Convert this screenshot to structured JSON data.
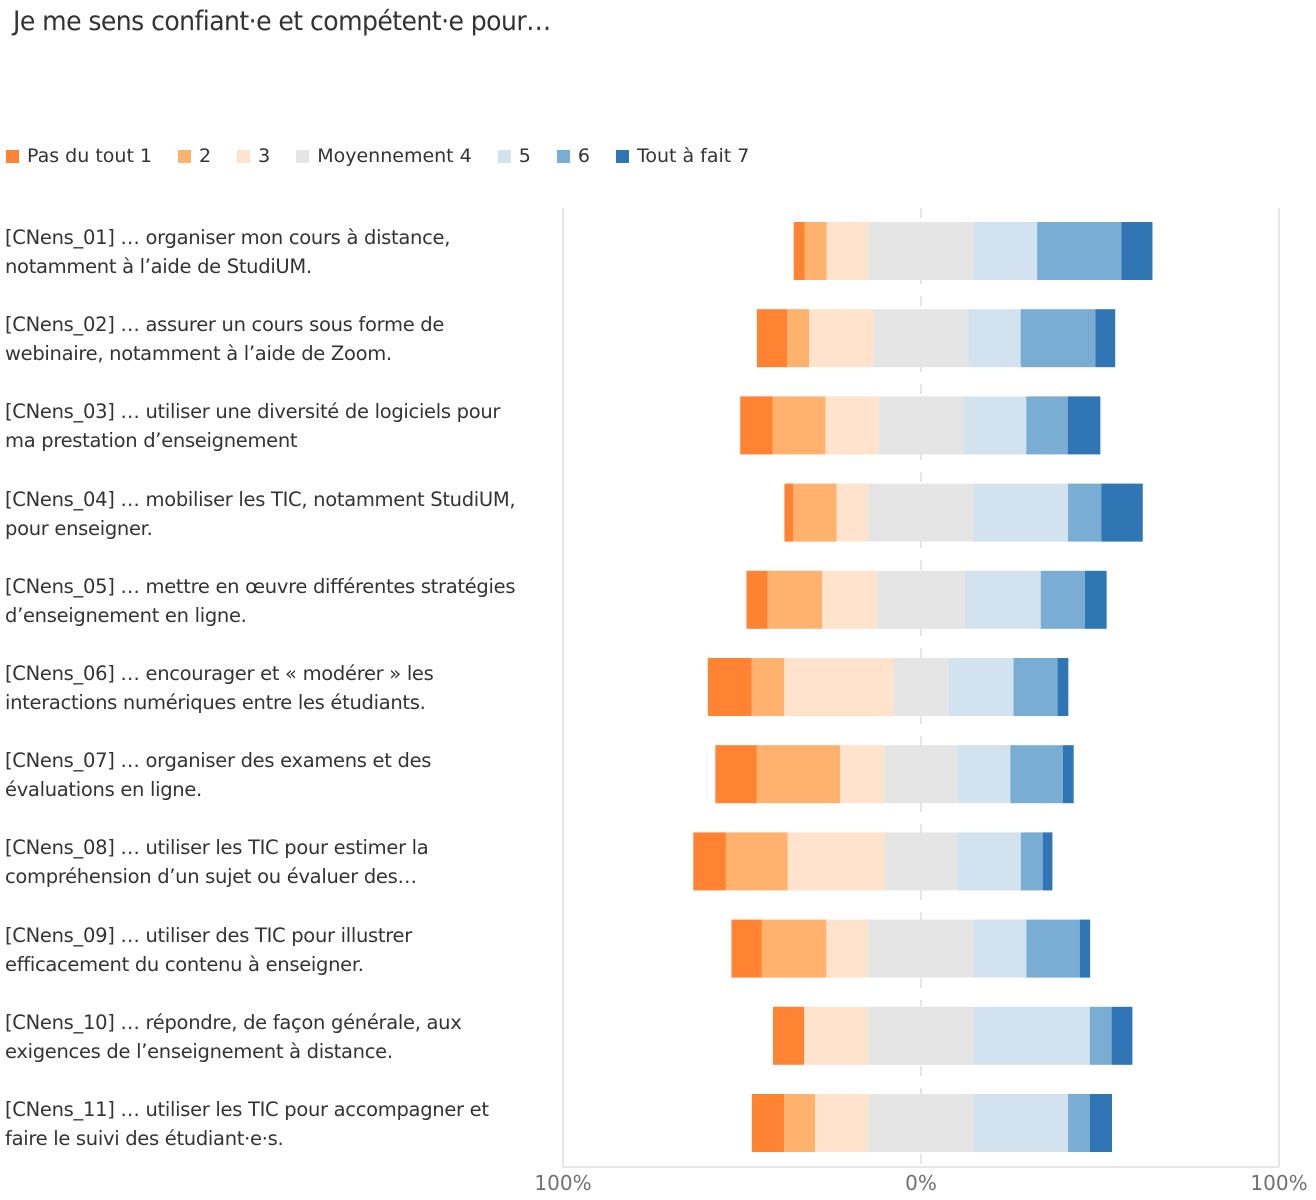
{
  "chart_data": {
    "type": "bar",
    "subtype": "diverging-stacked-horizontal",
    "title": "Je me sens confiant·e et compétent·e pour…",
    "xlabel": "",
    "ylabel": "",
    "xlim": [
      -100,
      100
    ],
    "x_ticks": [
      "100%",
      "0%",
      "100%"
    ],
    "legend_position": "top-left",
    "grid": "vertical lines at -100%, 0%, 100%",
    "neutral_category_index": 3,
    "series": [
      {
        "name": "Pas du tout 1",
        "color": "#FF8333"
      },
      {
        "name": "2",
        "color": "#FFB26E"
      },
      {
        "name": "3",
        "color": "#FFE3CD"
      },
      {
        "name": "Moyennement 4",
        "color": "#E5E5E5"
      },
      {
        "name": "5",
        "color": "#D2E3EF"
      },
      {
        "name": "6",
        "color": "#7AADD3"
      },
      {
        "name": "Tout à fait 7",
        "color": "#3076B4"
      }
    ],
    "categories": [
      "[CNens_01] … organiser mon cours à distance, notamment à l’aide de StudiUM.",
      "[CNens_02] … assurer un cours sous forme de webinaire, notamment à l’aide de Zoom.",
      "[CNens_03] … utiliser une diversité de logiciels pour ma prestation d’enseignement",
      "[CNens_04] … mobiliser les TIC, notamment StudiUM, pour enseigner.",
      "[CNens_05] … mettre en œuvre différentes stratégies d’enseignement en ligne.",
      "[CNens_06] … encourager et « modérer » les interactions numériques entre les étudiants.",
      "[CNens_07] … organiser des examens et des évaluations en ligne.",
      "[CNens_08] … utiliser les TIC pour estimer la compréhension d’un sujet ou évaluer des…",
      "[CNens_09] … utiliser des TIC pour illustrer efficacement du contenu à enseigner.",
      "[CNens_10] … répondre, de façon générale, aux exigences de l’enseignement à distance.",
      "[CNens_11] … utiliser les TIC pour accompagner et faire le suivi des étudiant·e·s."
    ],
    "values_percent": [
      [
        3.1,
        6.1,
        11.6,
        29.5,
        17.7,
        23.5,
        8.7
      ],
      [
        8.5,
        6.1,
        18.0,
        26.5,
        14.6,
        20.9,
        5.5
      ],
      [
        9.1,
        14.7,
        14.9,
        23.6,
        17.6,
        11.6,
        9.1
      ],
      [
        2.4,
        12.2,
        8.8,
        29.5,
        26.3,
        9.3,
        11.6
      ],
      [
        5.9,
        15.2,
        15.4,
        24.5,
        21.2,
        12.3,
        6.1
      ],
      [
        12.2,
        9.1,
        30.6,
        15.3,
        18.2,
        12.3,
        3.0
      ],
      [
        11.6,
        23.3,
        12.3,
        20.5,
        14.7,
        14.7,
        3.0
      ],
      [
        9.1,
        17.3,
        27.0,
        20.4,
        17.7,
        6.1,
        2.7
      ],
      [
        8.5,
        18.0,
        11.7,
        29.5,
        14.7,
        14.9,
        2.9
      ],
      [
        8.7,
        0.0,
        17.9,
        29.5,
        32.4,
        6.1,
        5.8
      ],
      [
        9.0,
        8.7,
        14.8,
        29.5,
        26.3,
        6.1,
        6.2
      ]
    ]
  },
  "labels": [
    [
      "[CNens_01] … organiser mon cours à distance,",
      "notamment à l’aide de StudiUM."
    ],
    [
      "[CNens_02] … assurer un cours sous forme de",
      "webinaire, notamment à l’aide de Zoom."
    ],
    [
      "[CNens_03] … utiliser une diversité de logiciels pour",
      "ma prestation d’enseignement"
    ],
    [
      "[CNens_04] … mobiliser les TIC, notamment StudiUM,",
      "pour enseigner."
    ],
    [
      "[CNens_05] … mettre en œuvre différentes stratégies",
      "d’enseignement en ligne."
    ],
    [
      "[CNens_06] … encourager et « modérer » les",
      "interactions numériques entre les étudiants."
    ],
    [
      "[CNens_07] … organiser des examens et des",
      "évaluations en ligne."
    ],
    [
      "[CNens_08] … utiliser les TIC pour estimer la",
      "compréhension d’un sujet ou évaluer des…"
    ],
    [
      "[CNens_09] … utiliser des TIC pour illustrer",
      "efficacement du contenu à enseigner."
    ],
    [
      "[CNens_10] … répondre, de façon générale, aux",
      "exigences de l’enseignement à distance."
    ],
    [
      "[CNens_11] … utiliser les TIC pour accompagner et",
      "faire le suivi des étudiant·e·s."
    ]
  ]
}
